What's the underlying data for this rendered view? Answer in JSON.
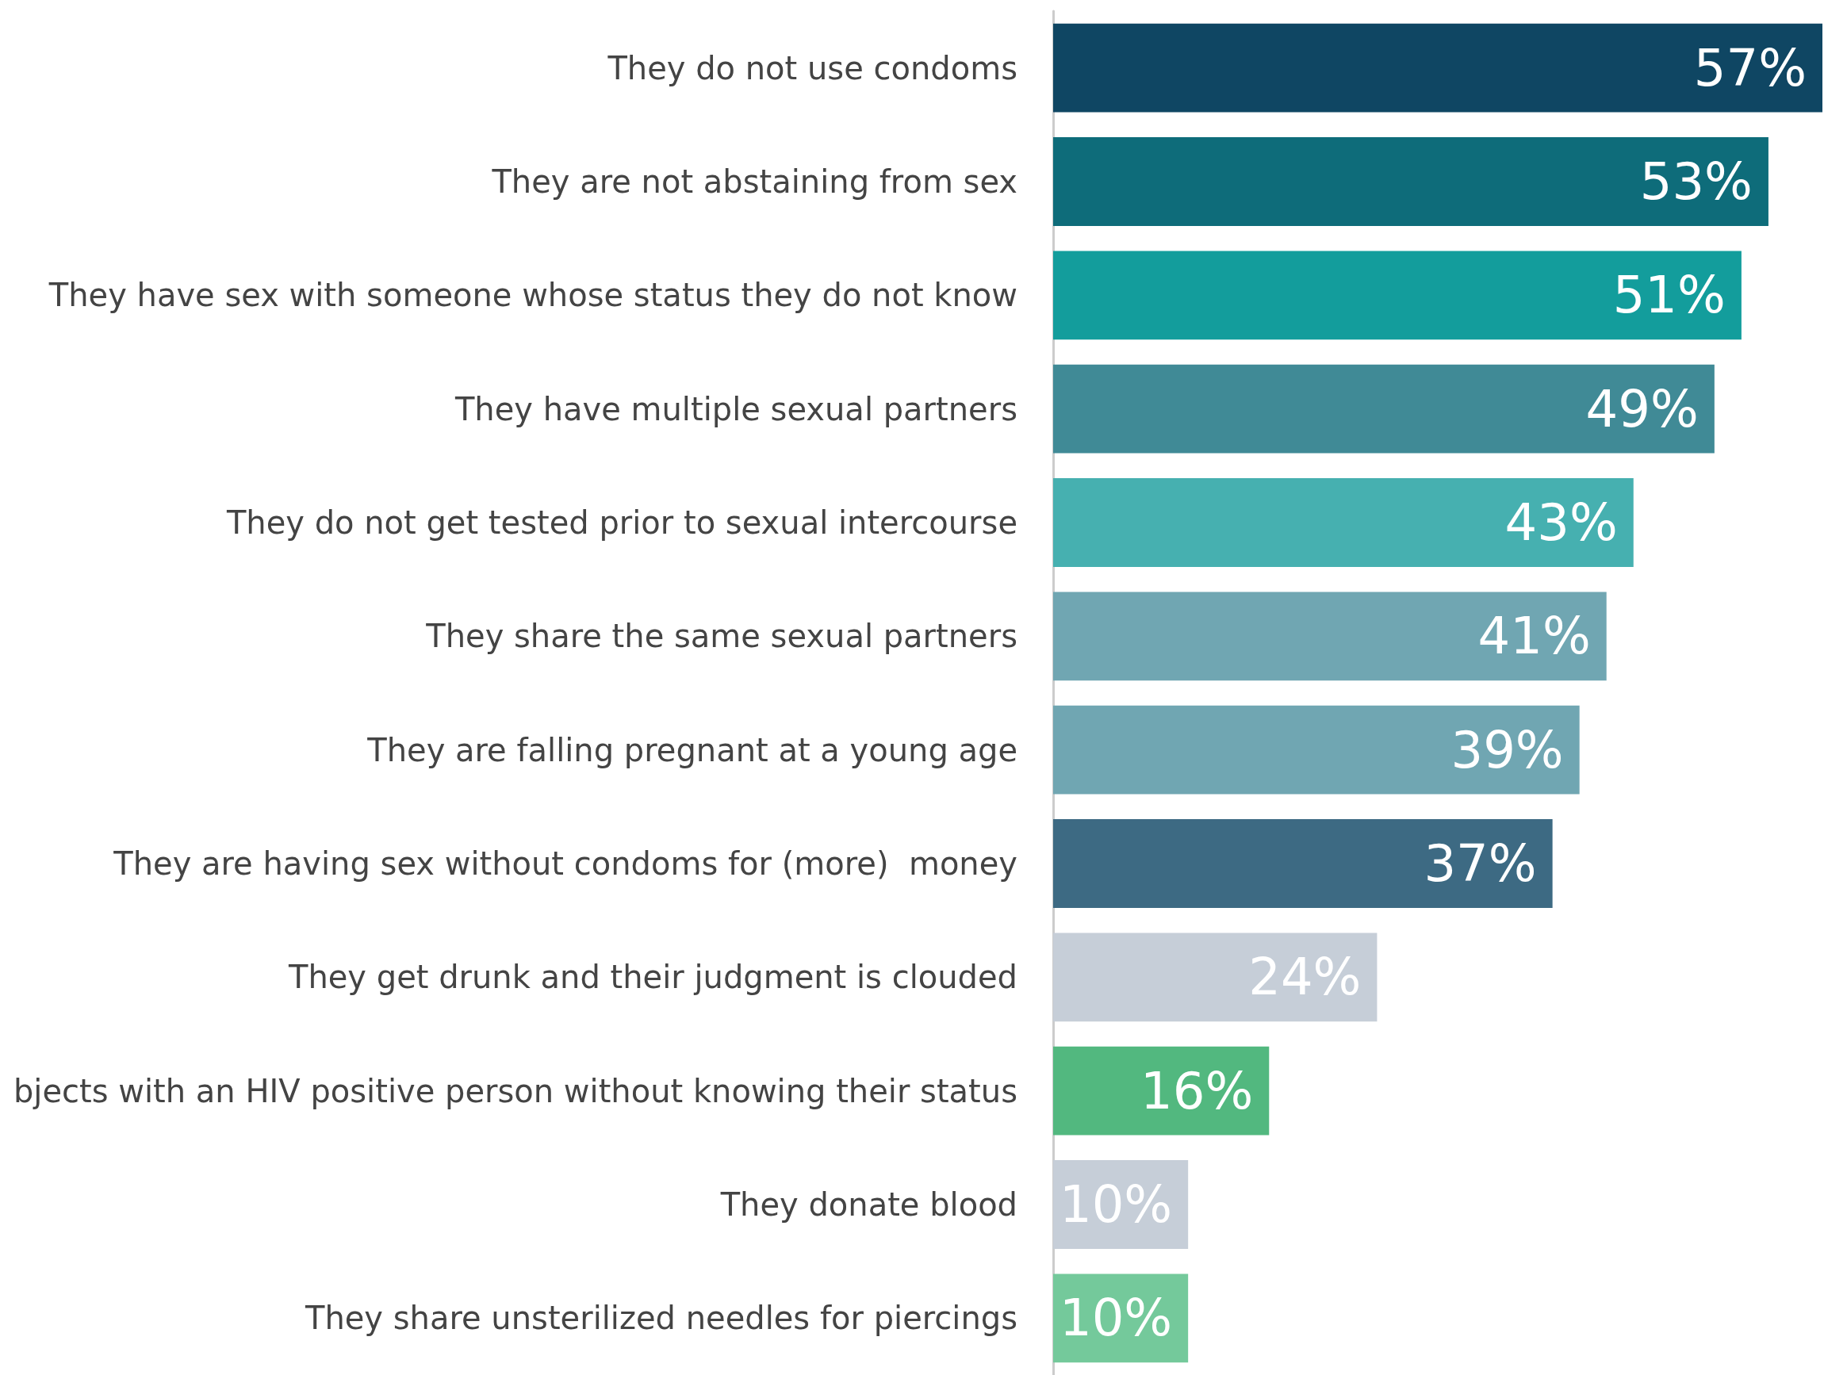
{
  "chart_data": {
    "type": "bar",
    "orientation": "horizontal",
    "categories": [
      "They do not use condoms",
      "They are not abstaining from sex",
      "They have sex with someone whose status they do not know",
      "They have multiple sexual partners",
      "They do not get tested prior to sexual intercourse",
      "They share the same sexual partners",
      "They are falling pregnant at a young age",
      "They are having sex without condoms for (more)  money",
      "They get drunk and their judgment is clouded",
      "bjects with an HIV positive person without knowing their status",
      "They donate blood",
      "They share unsterilized needles for piercings"
    ],
    "values": [
      57,
      53,
      51,
      49,
      43,
      41,
      39,
      37,
      24,
      16,
      10,
      10
    ],
    "value_labels": [
      "57%",
      "53%",
      "51%",
      "49%",
      "43%",
      "41%",
      "39%",
      "37%",
      "24%",
      "16%",
      "10%",
      "10%"
    ],
    "colors": [
      "#0f4663",
      "#0e6c7a",
      "#139d9c",
      "#408a96",
      "#46b0b0",
      "#70a6b2",
      "#70a6b2",
      "#3d6a83",
      "#c6ced8",
      "#52b87f",
      "#c6ced8",
      "#74c99b"
    ]
  }
}
